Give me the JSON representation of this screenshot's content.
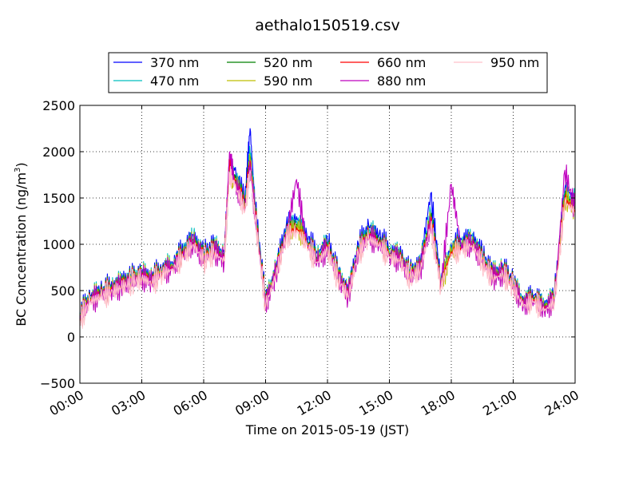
{
  "chart_data": {
    "type": "line",
    "title": "aethalo150519.csv",
    "xlabel": "Time on 2015-05-19 (JST)",
    "ylabel": "BC Concentration (ng/m",
    "ylabel_sup": "3",
    "ylabel_close": ")",
    "xlim": [
      "00:00",
      "24:00"
    ],
    "ylim": [
      -500,
      2500
    ],
    "grid": true,
    "legend_position": "top",
    "xticks": [
      "00:00",
      "03:00",
      "06:00",
      "09:00",
      "12:00",
      "15:00",
      "18:00",
      "21:00",
      "24:00"
    ],
    "yticks": [
      "2500",
      "2000",
      "1500",
      "1000",
      "500",
      "0",
      "−500"
    ],
    "x": [
      "00:00",
      "00:30",
      "01:00",
      "01:30",
      "02:00",
      "02:30",
      "03:00",
      "03:30",
      "04:00",
      "04:30",
      "05:00",
      "05:30",
      "06:00",
      "06:30",
      "07:00",
      "07:15",
      "07:30",
      "08:00",
      "08:15",
      "08:30",
      "09:00",
      "09:30",
      "10:00",
      "10:30",
      "11:00",
      "11:30",
      "12:00",
      "12:30",
      "13:00",
      "13:30",
      "14:00",
      "14:30",
      "15:00",
      "15:30",
      "16:00",
      "16:30",
      "17:00",
      "17:30",
      "18:00",
      "18:30",
      "19:00",
      "19:30",
      "20:00",
      "20:30",
      "21:00",
      "21:30",
      "22:00",
      "22:30",
      "23:00",
      "23:30",
      "24:00"
    ],
    "series": [
      {
        "name": "370 nm",
        "color": "#0000ff",
        "values": [
          250,
          450,
          500,
          550,
          600,
          650,
          700,
          650,
          750,
          800,
          950,
          1100,
          900,
          1000,
          900,
          1850,
          1800,
          1500,
          2250,
          1400,
          400,
          750,
          1200,
          1300,
          1100,
          900,
          1050,
          700,
          500,
          1000,
          1200,
          1100,
          950,
          900,
          700,
          800,
          1550,
          600,
          1000,
          1050,
          1100,
          900,
          700,
          750,
          600,
          400,
          450,
          350,
          450,
          1600,
          1500
        ]
      },
      {
        "name": "470 nm",
        "color": "#00bfbf",
        "values": [
          230,
          430,
          480,
          530,
          580,
          630,
          680,
          630,
          730,
          780,
          920,
          1070,
          870,
          970,
          870,
          1800,
          1750,
          1450,
          2000,
          1350,
          380,
          720,
          1150,
          1250,
          1050,
          860,
          1000,
          680,
          480,
          960,
          1150,
          1050,
          920,
          870,
          680,
          770,
          1350,
          580,
          960,
          1000,
          1050,
          860,
          680,
          720,
          580,
          380,
          430,
          330,
          430,
          1550,
          1450
        ]
      },
      {
        "name": "520 nm",
        "color": "#008000",
        "values": [
          220,
          420,
          470,
          520,
          570,
          620,
          670,
          620,
          720,
          770,
          900,
          1050,
          860,
          950,
          860,
          1780,
          1720,
          1430,
          1950,
          1330,
          370,
          710,
          1120,
          1220,
          1030,
          840,
          980,
          670,
          470,
          940,
          1120,
          1030,
          900,
          860,
          670,
          760,
          1300,
          570,
          940,
          980,
          1030,
          840,
          670,
          710,
          570,
          370,
          420,
          320,
          420,
          1520,
          1420
        ]
      },
      {
        "name": "590 nm",
        "color": "#bfbf00",
        "values": [
          210,
          410,
          460,
          510,
          560,
          610,
          660,
          610,
          710,
          760,
          890,
          1030,
          850,
          940,
          850,
          1760,
          1700,
          1410,
          1920,
          1310,
          360,
          700,
          1110,
          1200,
          1020,
          830,
          970,
          660,
          460,
          930,
          1100,
          1020,
          890,
          850,
          660,
          750,
          1280,
          560,
          930,
          970,
          1020,
          830,
          660,
          700,
          560,
          360,
          410,
          310,
          410,
          1500,
          1400
        ]
      },
      {
        "name": "660 nm",
        "color": "#ff0000",
        "values": [
          200,
          400,
          450,
          500,
          550,
          600,
          650,
          600,
          700,
          750,
          880,
          1020,
          840,
          930,
          840,
          1900,
          1680,
          1400,
          1900,
          1300,
          350,
          690,
          1100,
          1180,
          1010,
          820,
          960,
          650,
          450,
          920,
          1090,
          1010,
          880,
          840,
          650,
          740,
          1250,
          550,
          920,
          960,
          1010,
          820,
          650,
          690,
          550,
          350,
          400,
          300,
          400,
          1480,
          1380
        ]
      },
      {
        "name": "880 nm",
        "color": "#bf00bf",
        "values": [
          190,
          390,
          440,
          490,
          540,
          590,
          640,
          590,
          690,
          740,
          870,
          1010,
          830,
          920,
          830,
          2000,
          1660,
          1380,
          1850,
          1280,
          340,
          680,
          1090,
          1700,
          1000,
          810,
          950,
          640,
          440,
          910,
          1080,
          1000,
          870,
          830,
          640,
          730,
          1230,
          540,
          1650,
          950,
          1000,
          810,
          640,
          680,
          540,
          340,
          390,
          290,
          390,
          1800,
          1370
        ]
      },
      {
        "name": "950 nm",
        "color": "#ffc0cb",
        "values": [
          180,
          380,
          430,
          480,
          530,
          580,
          630,
          580,
          680,
          730,
          860,
          1000,
          820,
          900,
          820,
          1750,
          1640,
          1360,
          1800,
          1260,
          330,
          670,
          1080,
          1150,
          990,
          800,
          940,
          630,
          430,
          900,
          1060,
          990,
          860,
          820,
          630,
          720,
          1200,
          530,
          900,
          940,
          990,
          800,
          630,
          670,
          530,
          330,
          380,
          280,
          380,
          1450,
          1350
        ]
      }
    ]
  }
}
